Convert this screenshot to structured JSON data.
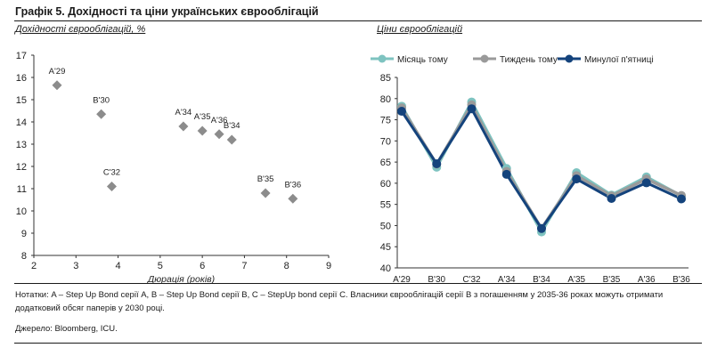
{
  "header": {
    "title": "Графік 5. Дохідності та ціни українських єврооблігацій"
  },
  "chart_data": [
    {
      "type": "scatter",
      "subtitle": "Дохідності єврооблігацій, %",
      "xlabel": "Дюрація (років)",
      "ylabel": "",
      "xlim": [
        2,
        9
      ],
      "ylim": [
        8,
        17
      ],
      "xticks": [
        "2",
        "3",
        "4",
        "5",
        "6",
        "7",
        "8",
        "9"
      ],
      "yticks": [
        "8",
        "9",
        "10",
        "11",
        "12",
        "13",
        "14",
        "15",
        "16",
        "17"
      ],
      "color": "#8c8c8c",
      "points": [
        {
          "label": "A'29",
          "x": 2.55,
          "y": 15.65
        },
        {
          "label": "B'30",
          "x": 3.6,
          "y": 14.35
        },
        {
          "label": "C'32",
          "x": 3.85,
          "y": 11.1
        },
        {
          "label": "A'34",
          "x": 5.55,
          "y": 13.8
        },
        {
          "label": "A'35",
          "x": 6.0,
          "y": 13.6
        },
        {
          "label": "A'36",
          "x": 6.4,
          "y": 13.45
        },
        {
          "label": "B'34",
          "x": 6.7,
          "y": 13.2
        },
        {
          "label": "B'35",
          "x": 7.5,
          "y": 10.8
        },
        {
          "label": "B'36",
          "x": 8.15,
          "y": 10.55
        }
      ]
    },
    {
      "type": "line",
      "subtitle": "Ціни єврооблігацій",
      "ylim": [
        40,
        85
      ],
      "yticks": [
        "85",
        "80",
        "75",
        "70",
        "65",
        "60",
        "55",
        "50",
        "45",
        "40"
      ],
      "categories": [
        "A'29",
        "B'30",
        "C'32",
        "A'34",
        "B'34",
        "A'35",
        "B'35",
        "A'36",
        "B'36"
      ],
      "legend_position": "top",
      "series": [
        {
          "name": "Місяць тому",
          "color": "#7ec3c0",
          "values": [
            78.2,
            63.8,
            79.2,
            63.5,
            48.5,
            62.5,
            57.2,
            61.5,
            57.0
          ]
        },
        {
          "name": "Тиждень тому",
          "color": "#9a9a9a",
          "values": [
            77.8,
            64.5,
            78.5,
            62.8,
            49.3,
            61.8,
            57.0,
            61.0,
            57.1
          ]
        },
        {
          "name": "Минулої п'ятниці",
          "color": "#14437c",
          "values": [
            77.0,
            64.6,
            77.6,
            62.1,
            49.3,
            61.0,
            56.4,
            60.1,
            56.3
          ]
        }
      ]
    }
  ],
  "notes": {
    "line1": "Нотатки: A – Step Up Bond серії A, B – Step Up Bond серії B, C – StepUp bond серії C. Власники єврооблігацій серії B з погашенням у 2035-36 роках можуть отримати",
    "line2": "додатковий обсяг паперів у 2030 році.",
    "source": "Джерело: Bloomberg, ICU."
  }
}
